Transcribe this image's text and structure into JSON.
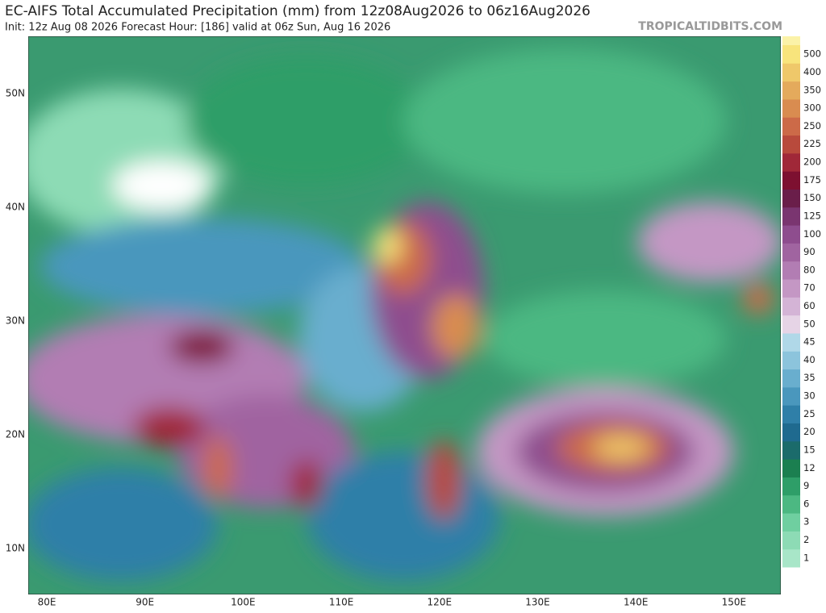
{
  "title": "EC-AIFS Total Accumulated Precipitation (mm) from 12z08Aug2026 to 06z16Aug2026",
  "subtitle": "Init: 12z Aug 08 2026   Forecast Hour: [186]   valid at 06z Sun, Aug 16 2026",
  "watermark": "TROPICALTIDBITS.COM",
  "lat_labels": [
    "50N",
    "40N",
    "30N",
    "20N",
    "10N"
  ],
  "lon_labels": [
    "80E",
    "90E",
    "100E",
    "110E",
    "120E",
    "130E",
    "140E",
    "150E"
  ],
  "colorbar": {
    "levels": [
      1,
      2,
      3,
      6,
      9,
      12,
      15,
      20,
      25,
      30,
      35,
      40,
      45,
      50,
      60,
      70,
      80,
      90,
      100,
      125,
      150,
      175,
      200,
      225,
      250,
      300,
      350,
      400,
      500
    ],
    "colors": [
      "#a8e6c8",
      "#8ddbb5",
      "#6fcfa0",
      "#4cb882",
      "#2e9e68",
      "#1b7f50",
      "#1b6b6b",
      "#1f6a8f",
      "#2f7fa8",
      "#4a97bd",
      "#69aece",
      "#8cc4dc",
      "#b0d8e8",
      "#e6d4e6",
      "#d4b4d6",
      "#c497c4",
      "#b27db3",
      "#a064a0",
      "#8e4d8e",
      "#7a3570",
      "#6a1e4a",
      "#7d1030",
      "#a02838",
      "#b84a3c",
      "#cc6a48",
      "#d98c50",
      "#e4aa5c",
      "#efc86a",
      "#f8e47c"
    ]
  }
}
